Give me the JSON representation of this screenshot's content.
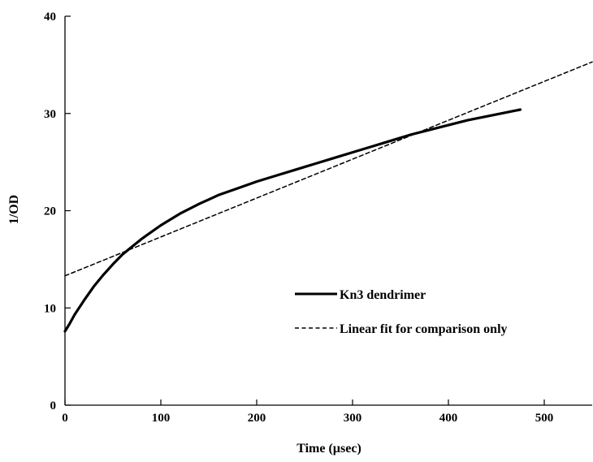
{
  "chart_data": {
    "type": "line",
    "xlabel": "Time (µsec)",
    "ylabel": "1/OD",
    "xlim": [
      0,
      550
    ],
    "ylim": [
      0,
      40
    ],
    "x_ticks": [
      0,
      100,
      200,
      300,
      400,
      500
    ],
    "y_ticks": [
      0,
      10,
      20,
      30,
      40
    ],
    "legend_position": "center-right",
    "grid": false,
    "series": [
      {
        "name": "Kn3 dendrimer",
        "style": "solid",
        "color": "#000000",
        "x": [
          0,
          5,
          10,
          20,
          30,
          40,
          50,
          60,
          70,
          80,
          90,
          100,
          120,
          140,
          160,
          180,
          200,
          220,
          240,
          260,
          280,
          300,
          320,
          340,
          360,
          380,
          400,
          420,
          440,
          460,
          475
        ],
        "y": [
          7.6,
          8.4,
          9.3,
          10.8,
          12.2,
          13.4,
          14.5,
          15.5,
          16.3,
          17.1,
          17.8,
          18.5,
          19.7,
          20.7,
          21.6,
          22.3,
          23.0,
          23.6,
          24.2,
          24.8,
          25.4,
          26.0,
          26.6,
          27.2,
          27.8,
          28.3,
          28.8,
          29.3,
          29.7,
          30.1,
          30.4
        ]
      },
      {
        "name": "Linear fit for comparison only",
        "style": "dashed",
        "color": "#000000",
        "x": [
          0,
          550
        ],
        "y": [
          13.3,
          35.3
        ]
      }
    ]
  }
}
